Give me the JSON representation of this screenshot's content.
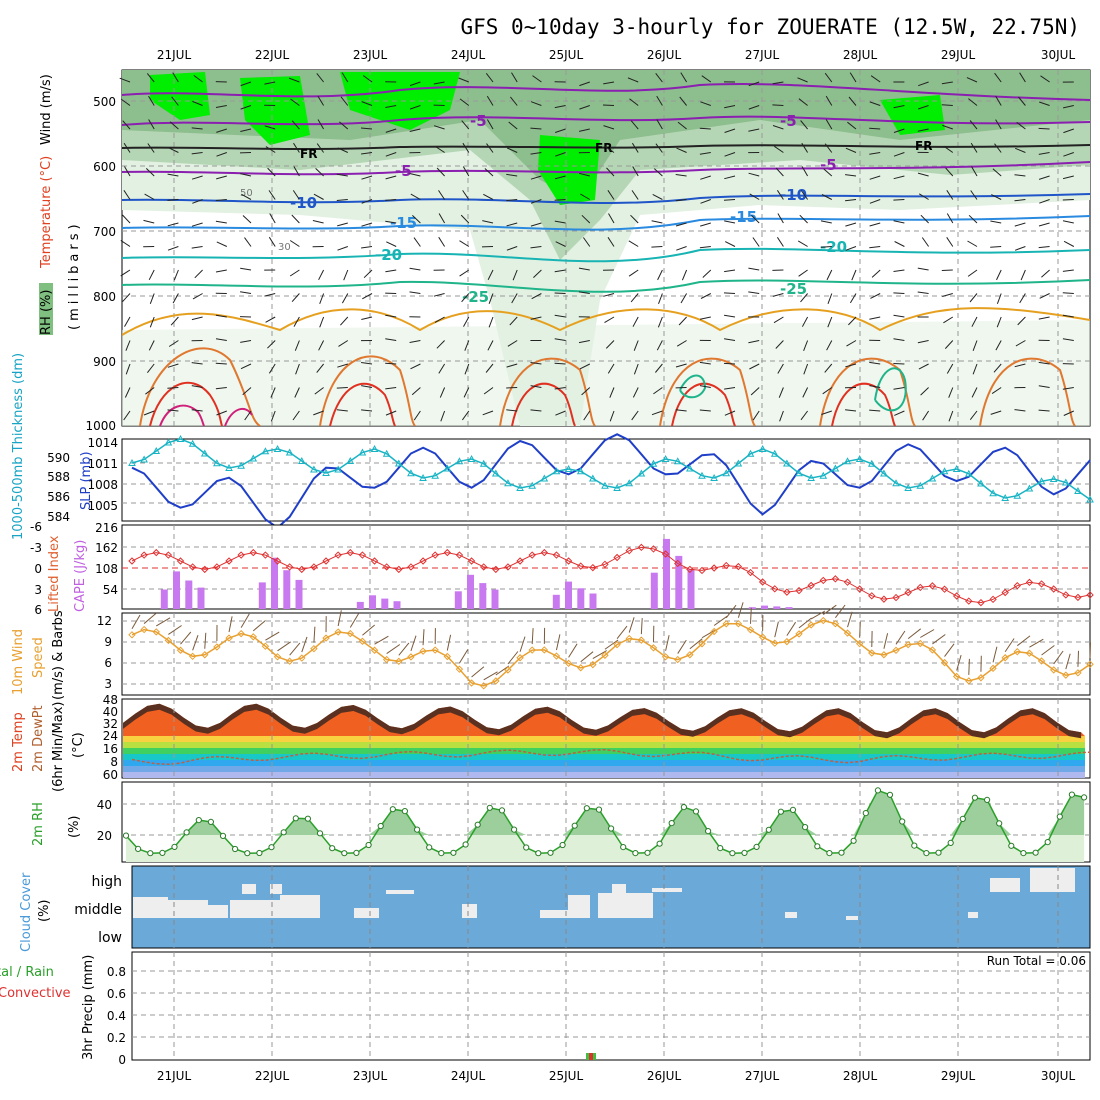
{
  "title": "GFS 0~10day 3-hourly for ZOUERATE (12.5W, 22.75N)",
  "dates": [
    "21JUL",
    "22JUL",
    "23JUL",
    "24JUL",
    "25JUL",
    "26JUL",
    "27JUL",
    "28JUL",
    "29JUL",
    "30JUL"
  ],
  "colors": {
    "rh_green": "#00ee00",
    "rh_mid": "#6cc46c",
    "rh_light": "#d9ecd9",
    "temp_purple": "#8a1fb0",
    "temp_blue": "#1f55c8",
    "temp_teal": "#18b4b4",
    "temp_orange": "#e6a020",
    "temp_red": "#e03020",
    "cape": "#c879f0",
    "wind": "#e8a030",
    "cloud_bg": "#6baad8",
    "rh2m": "#2aa02a",
    "precip_green": "#40c040",
    "precip_red": "#e03030"
  },
  "panel1": {
    "ylabels": {
      "rh": "RH (%)",
      "temp": "Temperature (°C)",
      "wind": "Wind (m/s)",
      "units": "(millibars)"
    },
    "yticks": [
      "500",
      "600",
      "700",
      "800",
      "900",
      "1000"
    ],
    "contour_labels": [
      "5",
      "-5",
      "FR",
      "FR",
      "FR",
      "-5",
      "-5",
      "-10",
      "-15",
      "-15",
      "-20",
      "-20",
      "-25",
      "-25",
      "-10",
      "-10",
      "50",
      "30"
    ]
  },
  "panel2": {
    "ylabel_left": "1000-500mb Thickness (dm)",
    "ylabel_right": "SLP (mb)",
    "left_ticks": [
      "590",
      "588",
      "586",
      "584"
    ],
    "right_ticks": [
      "1014",
      "1011",
      "1008",
      "1005"
    ]
  },
  "panel3": {
    "ylabel_left": "Lifted Index",
    "ylabel_right": "CAPE (J/kg)",
    "left_ticks": [
      "-6",
      "-3",
      "0",
      "3",
      "6"
    ],
    "right_ticks": [
      "216",
      "162",
      "108",
      "54"
    ]
  },
  "panel4": {
    "ylabel_a": "10m Wind",
    "ylabel_b": "Speed",
    "ylabel_c": "(m/s) & Barbs",
    "yticks": [
      "12",
      "9",
      "6",
      "3"
    ]
  },
  "panel5": {
    "ylabel_a": "2m Temp",
    "ylabel_b": "2m DewPt",
    "ylabel_c": "(6hr Min/Max)",
    "ylabel_d": "(°C)",
    "yticks": [
      "48",
      "40",
      "32",
      "24",
      "16",
      "8",
      "60"
    ]
  },
  "panel6": {
    "ylabel_a": "2m RH",
    "ylabel_b": "(%)",
    "yticks": [
      "40",
      "20"
    ]
  },
  "panel7": {
    "ylabel_a": "Cloud Cover",
    "ylabel_b": "(%)",
    "levels": [
      "high",
      "middle",
      "low"
    ]
  },
  "panel8": {
    "ylabel_a": "tal / Rain",
    "ylabel_b": "Convective",
    "ylabel_c": "3hr Precip (mm)",
    "yticks": [
      "0.8",
      "0.6",
      "0.4",
      "0.2",
      "0"
    ],
    "run_total": "Run Total = 0.06"
  },
  "chart_data": [
    {
      "type": "line",
      "title": "SLP (mb)",
      "x": [
        "21JUL",
        "22JUL",
        "23JUL",
        "24JUL",
        "25JUL",
        "26JUL",
        "27JUL",
        "28JUL",
        "29JUL",
        "30JUL"
      ],
      "series": [
        {
          "name": "SLP (mb)",
          "values": [
            1007,
            1004,
            1010,
            1010,
            1012,
            1012,
            1006,
            1010,
            1011,
            1009
          ]
        },
        {
          "name": "1000-500mb Thickness (dm)",
          "values": [
            590,
            589,
            589,
            588,
            587,
            588,
            589,
            588,
            587,
            586
          ]
        }
      ],
      "ylim": [
        1002,
        1014
      ]
    },
    {
      "type": "bar",
      "title": "CAPE (J/kg)",
      "categories": [
        "21JUL",
        "22JUL",
        "23JUL",
        "24JUL",
        "25JUL",
        "26JUL",
        "27JUL",
        "28JUL",
        "29JUL",
        "30JUL"
      ],
      "values": [
        110,
        150,
        40,
        100,
        80,
        205,
        10,
        0,
        0,
        0
      ],
      "series": [
        {
          "name": "Lifted Index",
          "values": [
            -1,
            -1,
            -1,
            -1,
            -1,
            -2,
            2,
            3,
            4,
            3
          ]
        }
      ],
      "ylim": [
        0,
        216
      ]
    },
    {
      "type": "line",
      "title": "10m Wind Speed (m/s)",
      "x": [
        "21JUL",
        "22JUL",
        "23JUL",
        "24JUL",
        "25JUL",
        "26JUL",
        "27JUL",
        "28JUL",
        "29JUL",
        "30JUL"
      ],
      "values": [
        8,
        7,
        8,
        3,
        6,
        7,
        10,
        9,
        4,
        5
      ],
      "ylim": [
        0,
        12
      ]
    },
    {
      "type": "area",
      "title": "2m Temp / 2m DewPt (°C)",
      "x": [
        "21JUL",
        "22JUL",
        "23JUL",
        "24JUL",
        "25JUL",
        "26JUL",
        "27JUL",
        "28JUL",
        "29JUL",
        "30JUL"
      ],
      "series": [
        {
          "name": "2m Temp max",
          "values": [
            45,
            45,
            44,
            43,
            43,
            42,
            42,
            42,
            42,
            42
          ]
        },
        {
          "name": "2m Temp min",
          "values": [
            29,
            29,
            29,
            28,
            28,
            27,
            27,
            26,
            26,
            26
          ]
        },
        {
          "name": "2m DewPt",
          "values": [
            7,
            10,
            11,
            12,
            13,
            12,
            9,
            8,
            10,
            11
          ]
        }
      ]
    },
    {
      "type": "line",
      "title": "2m RH (%)",
      "x": [
        "21JUL",
        "22JUL",
        "23JUL",
        "24JUL",
        "25JUL",
        "26JUL",
        "27JUL",
        "28JUL",
        "29JUL",
        "30JUL"
      ],
      "values": [
        30,
        29,
        37,
        39,
        37,
        42,
        30,
        53,
        45,
        48
      ],
      "ylim": [
        0,
        55
      ]
    },
    {
      "type": "bar",
      "title": "3hr Precip (mm)",
      "categories": [
        "25JUL"
      ],
      "values": [
        0.06
      ],
      "ylim": [
        0,
        1
      ]
    }
  ]
}
